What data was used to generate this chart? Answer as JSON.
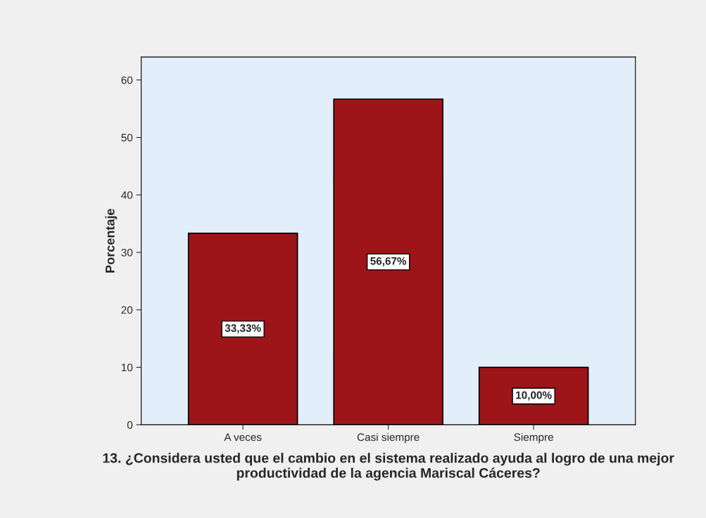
{
  "chart_data": {
    "type": "bar",
    "xlabel": "13. ¿Considera usted que el cambio en el sistema realizado ayuda al logro de una mejor productividad de la agencia Mariscal Cáceres?",
    "ylabel": "Porcentaje",
    "categories": [
      "A veces",
      "Casi siempre",
      "Siempre"
    ],
    "values": [
      33.33,
      56.67,
      10.0
    ],
    "value_labels": [
      "33,33%",
      "56,67%",
      "10,00%"
    ],
    "color": "#9e1519",
    "ylim": [
      0,
      64
    ],
    "yticks": [
      0,
      10,
      20,
      30,
      40,
      50,
      60
    ],
    "grid": false,
    "legend": false
  }
}
